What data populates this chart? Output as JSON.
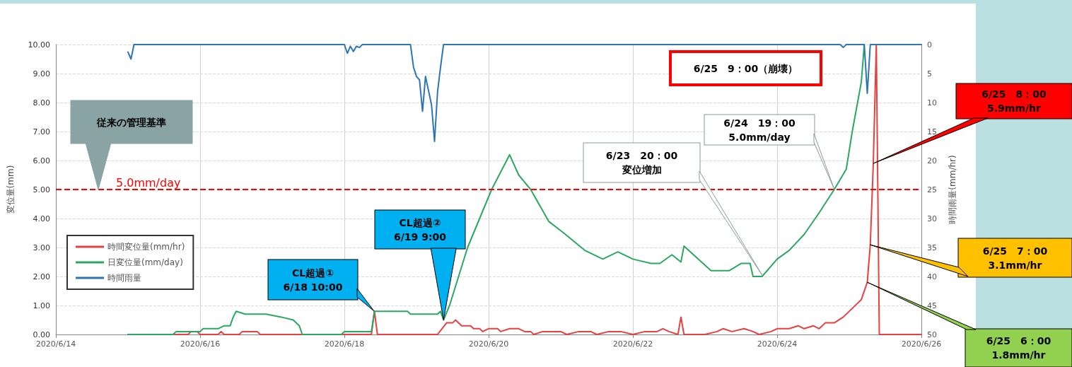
{
  "chart_data": {
    "type": "line",
    "ylabel": "変位量(mm)",
    "y2label": "時間雨量(mm/hr)",
    "xlim": [
      "2020-06-14",
      "2020-06-26"
    ],
    "xticks": [
      {
        "value": "2020-06-14",
        "label": "2020/6/14"
      },
      {
        "value": "2020-06-16",
        "label": "2020/6/16"
      },
      {
        "value": "2020-06-18",
        "label": "2020/6/18"
      },
      {
        "value": "2020-06-20",
        "label": "2020/6/20"
      },
      {
        "value": "2020-06-22",
        "label": "2020/6/22"
      },
      {
        "value": "2020-06-24",
        "label": "2020/6/24"
      },
      {
        "value": "2020-06-26",
        "label": "2020/6/26"
      }
    ],
    "ylim": [
      0,
      10
    ],
    "yticks": [
      {
        "value": 0,
        "label": "0.00"
      },
      {
        "value": 1,
        "label": "1.00"
      },
      {
        "value": 2,
        "label": "2.00"
      },
      {
        "value": 3,
        "label": "3.00"
      },
      {
        "value": 4,
        "label": "4.00"
      },
      {
        "value": 5,
        "label": "5.00"
      },
      {
        "value": 6,
        "label": "6.00"
      },
      {
        "value": 7,
        "label": "7.00"
      },
      {
        "value": 8,
        "label": "8.00"
      },
      {
        "value": 9,
        "label": "9.00"
      },
      {
        "value": 10,
        "label": "10.00"
      }
    ],
    "y2lim": [
      50,
      0
    ],
    "y2ticks": [
      0,
      5,
      10,
      15,
      20,
      25,
      30,
      35,
      40,
      45,
      50
    ],
    "grid": true,
    "legend": "bottom left",
    "marker": "none",
    "series": [
      {
        "name": "時間変位量(mm/hr)",
        "color": "#e8403f",
        "x": [
          "2020-06-15T00:00",
          "2020-06-15T20:00",
          "2020-06-15T21:00",
          "2020-06-15T23:00",
          "2020-06-16T00:00",
          "2020-06-16T06:00",
          "2020-06-16T07:00",
          "2020-06-16T08:00",
          "2020-06-16T13:00",
          "2020-06-16T14:00",
          "2020-06-16T19:00",
          "2020-06-16T20:00",
          "2020-06-18T09:00",
          "2020-06-18T10:00",
          "2020-06-18T11:00",
          "2020-06-19T07:00",
          "2020-06-19T10:00",
          "2020-06-19T12:00",
          "2020-06-19T13:00",
          "2020-06-19T15:00",
          "2020-06-19T18:00",
          "2020-06-19T19:00",
          "2020-06-19T21:00",
          "2020-06-19T22:00",
          "2020-06-20T00:00",
          "2020-06-20T03:00",
          "2020-06-20T04:00",
          "2020-06-20T07:00",
          "2020-06-20T10:00",
          "2020-06-20T12:00",
          "2020-06-20T14:00",
          "2020-06-20T15:00",
          "2020-06-20T18:00",
          "2020-06-20T21:00",
          "2020-06-21T00:00",
          "2020-06-21T02:00",
          "2020-06-21T06:00",
          "2020-06-21T10:00",
          "2020-06-21T12:00",
          "2020-06-21T16:00",
          "2020-06-21T20:00",
          "2020-06-22T00:00",
          "2020-06-22T04:00",
          "2020-06-22T08:00",
          "2020-06-22T10:00",
          "2020-06-22T12:00",
          "2020-06-22T15:00",
          "2020-06-22T16:00",
          "2020-06-22T17:00",
          "2020-06-23T00:00",
          "2020-06-23T04:00",
          "2020-06-23T06:00",
          "2020-06-23T09:00",
          "2020-06-23T13:00",
          "2020-06-23T16:00",
          "2020-06-23T18:00",
          "2020-06-23T22:00",
          "2020-06-24T00:00",
          "2020-06-24T04:00",
          "2020-06-24T07:00",
          "2020-06-24T09:00",
          "2020-06-24T12:00",
          "2020-06-24T14:00",
          "2020-06-24T16:00",
          "2020-06-24T19:00",
          "2020-06-24T22:00",
          "2020-06-25T01:00",
          "2020-06-25T04:00",
          "2020-06-25T05:00",
          "2020-06-25T06:00",
          "2020-06-25T07:00",
          "2020-06-25T08:00",
          "2020-06-25T09:00",
          "2020-06-25T10:00",
          "2020-06-26T00:00"
        ],
        "values": [
          0,
          0,
          0.1,
          0.1,
          0,
          0,
          0.1,
          0,
          0,
          0.1,
          0.1,
          0,
          0,
          0.8,
          0,
          0,
          0.4,
          0.4,
          0.5,
          0.3,
          0.3,
          0.2,
          0.2,
          0.1,
          0.2,
          0.2,
          0.1,
          0.2,
          0.2,
          0.1,
          0.1,
          0,
          0.1,
          0.1,
          0.1,
          0,
          0.1,
          0.1,
          0,
          0.1,
          0.1,
          0,
          0.1,
          0.1,
          0.2,
          0.1,
          0,
          0.6,
          0,
          0,
          0.1,
          0.2,
          0.1,
          0.2,
          0.1,
          0,
          0.1,
          0.2,
          0.2,
          0.3,
          0.2,
          0.3,
          0.2,
          0.4,
          0.4,
          0.6,
          0.9,
          1.2,
          1.5,
          1.8,
          3.1,
          5.9,
          10,
          0,
          0
        ]
      },
      {
        "name": "日変位量(mm/day)",
        "color": "#2aa862",
        "x": [
          "2020-06-15T00:00",
          "2020-06-15T15:00",
          "2020-06-15T16:00",
          "2020-06-16T00:00",
          "2020-06-16T01:00",
          "2020-06-16T06:00",
          "2020-06-16T08:00",
          "2020-06-16T10:00",
          "2020-06-16T11:00",
          "2020-06-16T12:00",
          "2020-06-16T15:00",
          "2020-06-16T22:00",
          "2020-06-17T03:00",
          "2020-06-17T07:00",
          "2020-06-17T09:00",
          "2020-06-17T10:00",
          "2020-06-17T23:00",
          "2020-06-18T00:00",
          "2020-06-18T09:00",
          "2020-06-18T10:00",
          "2020-06-18T21:00",
          "2020-06-18T22:00",
          "2020-06-19T07:00",
          "2020-06-19T08:00",
          "2020-06-19T09:00",
          "2020-06-19T11:00",
          "2020-06-19T14:00",
          "2020-06-19T17:00",
          "2020-06-19T21:00",
          "2020-06-20T01:00",
          "2020-06-20T07:00",
          "2020-06-20T10:00",
          "2020-06-20T14:00",
          "2020-06-20T20:00",
          "2020-06-21T01:00",
          "2020-06-21T08:00",
          "2020-06-21T14:00",
          "2020-06-21T19:00",
          "2020-06-22T00:00",
          "2020-06-22T06:00",
          "2020-06-22T09:00",
          "2020-06-22T13:00",
          "2020-06-22T16:00",
          "2020-06-22T17:00",
          "2020-06-23T02:00",
          "2020-06-23T08:00",
          "2020-06-23T12:00",
          "2020-06-23T15:00",
          "2020-06-23T16:00",
          "2020-06-23T19:00",
          "2020-06-24T00:00",
          "2020-06-24T04:00",
          "2020-06-24T09:00",
          "2020-06-24T14:00",
          "2020-06-24T19:00",
          "2020-06-24T23:00",
          "2020-06-25T01:00",
          "2020-06-25T04:00",
          "2020-06-25T05:00"
        ],
        "values": [
          0,
          0,
          0.1,
          0.1,
          0.2,
          0.2,
          0.3,
          0.3,
          0.6,
          0.8,
          0.7,
          0.7,
          0.6,
          0.5,
          0.3,
          0,
          0,
          0.1,
          0.1,
          0.8,
          0.8,
          0.7,
          0.7,
          0.8,
          0.5,
          1.0,
          2.0,
          3.0,
          4.0,
          5.0,
          6.2,
          5.5,
          5.0,
          3.9,
          3.5,
          2.9,
          2.6,
          2.85,
          2.6,
          2.45,
          2.45,
          2.75,
          2.5,
          3.05,
          2.2,
          2.2,
          2.45,
          2.45,
          2.0,
          2.0,
          2.6,
          2.9,
          3.45,
          4.2,
          5.0,
          5.7,
          7.0,
          8.7,
          10
        ]
      },
      {
        "name": "時間雨量",
        "color": "#2e75b6",
        "axis": "y2",
        "x": [
          "2020-06-15T00:00",
          "2020-06-15T01:00",
          "2020-06-15T02:00",
          "2020-06-18T00:00",
          "2020-06-18T01:00",
          "2020-06-18T02:00",
          "2020-06-18T03:00",
          "2020-06-18T04:00",
          "2020-06-18T05:00",
          "2020-06-18T06:00",
          "2020-06-18T22:00",
          "2020-06-18T23:00",
          "2020-06-19T00:00",
          "2020-06-19T01:00",
          "2020-06-19T02:00",
          "2020-06-19T03:00",
          "2020-06-19T05:00",
          "2020-06-19T06:00",
          "2020-06-19T07:00",
          "2020-06-19T08:00",
          "2020-06-19T09:00",
          "2020-06-24T21:00",
          "2020-06-24T22:00",
          "2020-06-24T23:00",
          "2020-06-25T02:00",
          "2020-06-25T04:00",
          "2020-06-25T05:00",
          "2020-06-25T06:00",
          "2020-06-25T07:00",
          "2020-06-26T00:00"
        ],
        "values": [
          1.3,
          2.5,
          0,
          0,
          1.5,
          0.3,
          1.2,
          0.3,
          0.5,
          0,
          0,
          3.9,
          5.5,
          6.1,
          11.5,
          5.5,
          10.4,
          16.7,
          8.2,
          3.9,
          0,
          0,
          0.5,
          0,
          0,
          0,
          0,
          8.4,
          0,
          0
        ]
      }
    ],
    "ref_lines": [
      {
        "axis": "y",
        "value": 5,
        "label": "5.0mm/day",
        "color": "#ff0000",
        "line_style": "dashed"
      }
    ],
    "annotations": [
      "従来の管理基準",
      "CL超過①\n6/18 10:00",
      {
        "text": "CL超過②\n6/19 9:00",
        "x": "2020-06-19T09:00",
        "y": 0.5
      },
      "6/23　20：00\n変位増加",
      "6/24　19：00\n5.0mm/day",
      "6/25　9：00（崩壊）",
      {
        "text": "6/25　8：00\n5.9mm/hr",
        "x": "2020-06-25T08:00",
        "y": 5.9
      },
      "6/25　7：00\n3.1mm/hr",
      {
        "text": "6/25　6：00\n1.8mm/hr",
        "x": "2020-06-25T06:00",
        "y": 1.8
      }
    ]
  }
}
